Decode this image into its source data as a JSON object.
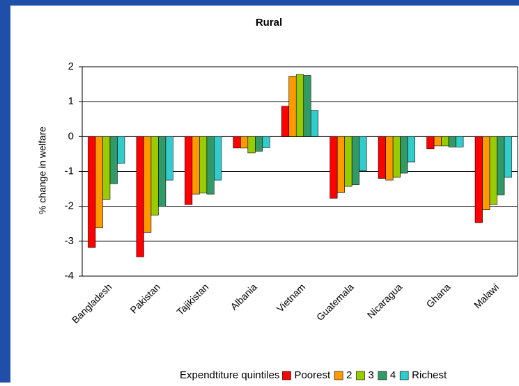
{
  "chart_data": {
    "type": "bar",
    "title": "Rural",
    "y_label": "% change in welfare",
    "categories": [
      "Bangladesh",
      "Pakistan",
      "Tajikistan",
      "Albania",
      "Vietnam",
      "Guatemala",
      "Nicaragua",
      "Ghana",
      "Malawi"
    ],
    "legend_title": "Expendtiture quintiles",
    "series": [
      {
        "name": "Poorest",
        "color": "#ff0000",
        "values": [
          -3.18,
          -3.45,
          -1.95,
          -0.33,
          0.87,
          -1.77,
          -1.2,
          -0.35,
          -2.47
        ]
      },
      {
        "name": "2",
        "color": "#ff9900",
        "values": [
          -2.62,
          -2.75,
          -1.65,
          -0.33,
          1.73,
          -1.6,
          -1.25,
          -0.27,
          -2.1
        ]
      },
      {
        "name": "3",
        "color": "#99cc00",
        "values": [
          -1.8,
          -2.25,
          -1.62,
          -0.47,
          1.78,
          -1.43,
          -1.17,
          -0.27,
          -1.95
        ]
      },
      {
        "name": "4",
        "color": "#339966",
        "values": [
          -1.35,
          -2.0,
          -1.65,
          -0.42,
          1.75,
          -1.38,
          -1.05,
          -0.3,
          -1.67
        ]
      },
      {
        "name": "Richest",
        "color": "#33cccc",
        "values": [
          -0.77,
          -1.25,
          -1.25,
          -0.32,
          0.75,
          -0.98,
          -0.73,
          -0.3,
          -1.17
        ]
      }
    ],
    "ylim": [
      -4,
      2
    ],
    "yticks": [
      -4,
      -3,
      -2,
      -1,
      0,
      1,
      2
    ],
    "grid": true,
    "legend": "bottom"
  }
}
